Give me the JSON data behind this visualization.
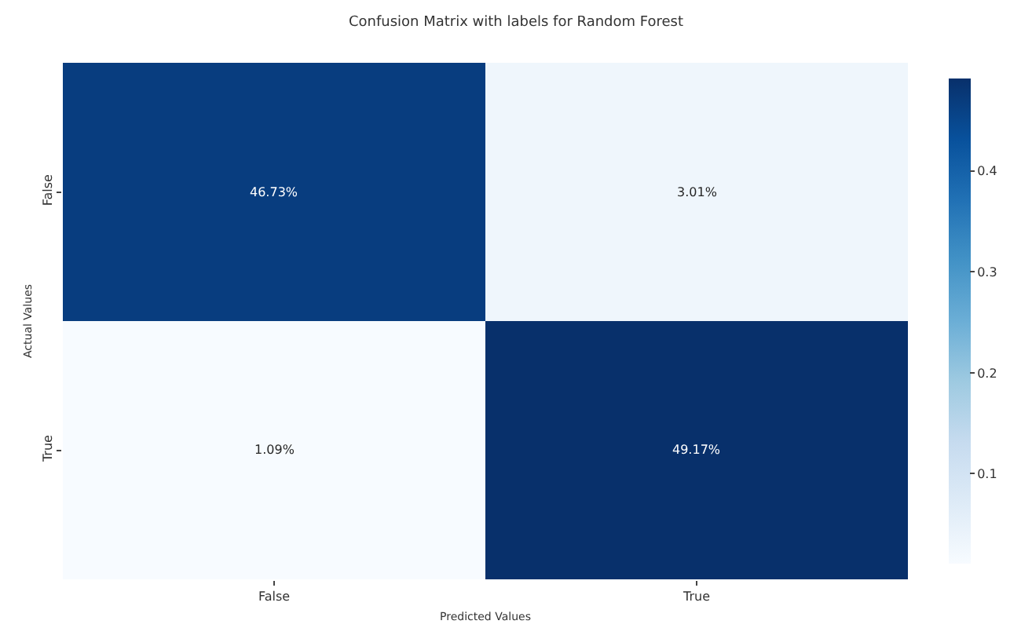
{
  "chart_data": {
    "type": "heatmap",
    "title": "Confusion Matrix with labels for Random Forest",
    "xlabel": "Predicted Values",
    "ylabel": "Actual Values",
    "categories": [
      "False",
      "True"
    ],
    "y_categories": [
      "False",
      "True"
    ],
    "cells": [
      [
        0.4673,
        0.0301
      ],
      [
        0.0109,
        0.4917
      ]
    ],
    "cell_labels": [
      [
        "46.73%",
        "3.01%"
      ],
      [
        "1.09%",
        "49.17%"
      ]
    ],
    "clim": [
      0.0109,
      0.4917
    ],
    "cticks": [
      0.1,
      0.2,
      0.3,
      0.4
    ]
  }
}
